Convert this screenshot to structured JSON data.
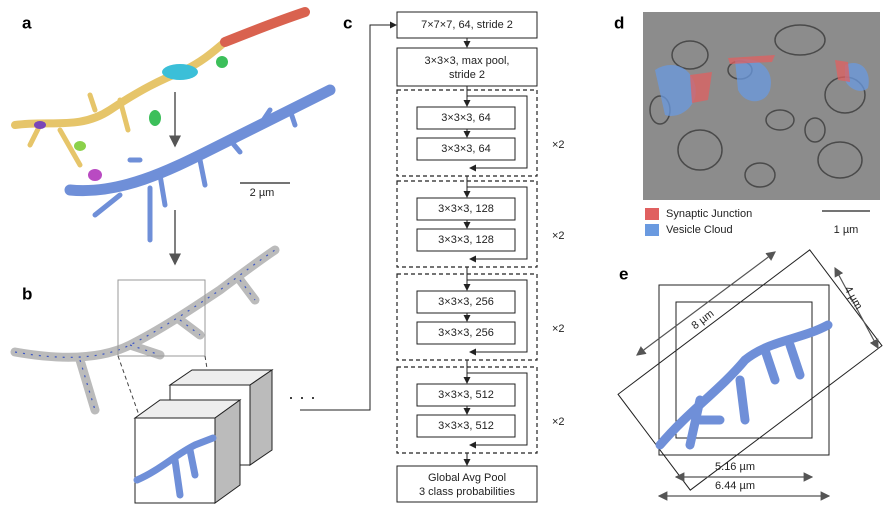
{
  "panels": {
    "a": {
      "label": "a",
      "scale": "2 µm"
    },
    "b": {
      "label": "b"
    },
    "c": {
      "label": "c",
      "input": "7×7×7, 64, stride 2",
      "pool": [
        "3×3×3, max pool,",
        "stride 2"
      ],
      "blocks": [
        {
          "layers": [
            "3×3×3, 64",
            "3×3×3, 64"
          ],
          "repeat": "×2"
        },
        {
          "layers": [
            "3×3×3, 128",
            "3×3×3, 128"
          ],
          "repeat": "×2"
        },
        {
          "layers": [
            "3×3×3, 256",
            "3×3×3, 256"
          ],
          "repeat": "×2"
        },
        {
          "layers": [
            "3×3×3, 512",
            "3×3×3, 512"
          ],
          "repeat": "×2"
        }
      ],
      "output": [
        "Global Avg Pool",
        "3 class probabilities"
      ]
    },
    "d": {
      "label": "d",
      "legend": [
        "Synaptic Junction",
        "Vesicle Cloud"
      ],
      "scale": "1 µm"
    },
    "e": {
      "label": "e",
      "dims": [
        "8 µm",
        "4 µm",
        "5.16 µm",
        "6.44 µm"
      ]
    }
  }
}
